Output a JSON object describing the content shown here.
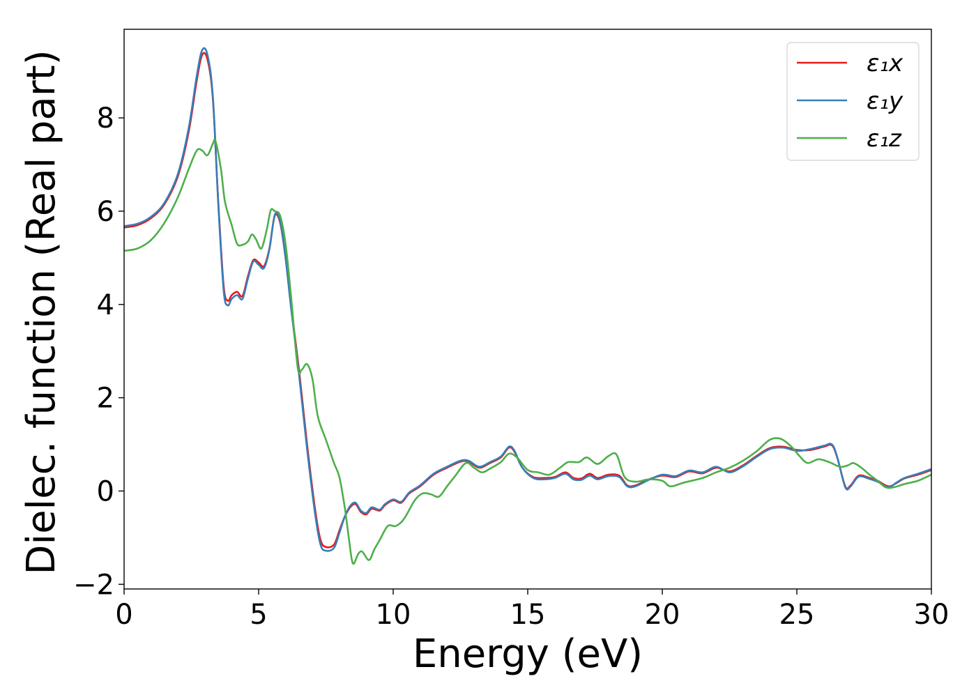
{
  "chart_data": {
    "type": "line",
    "xlabel": "Energy (eV)",
    "ylabel": "Dielec. function (Real part)",
    "xlim": [
      0,
      30
    ],
    "ylim": [
      -2.1,
      9.9
    ],
    "xticks": [
      0,
      5,
      10,
      15,
      20,
      25,
      30
    ],
    "xtick_labels": [
      "0",
      "5",
      "10",
      "15",
      "20",
      "25",
      "30"
    ],
    "yticks": [
      -2,
      0,
      2,
      4,
      6,
      8
    ],
    "ytick_labels": [
      "−2",
      "0",
      "2",
      "4",
      "6",
      "8"
    ],
    "grid": false,
    "legend_position": "top-right",
    "series": [
      {
        "name": "ε₁x",
        "color": "#e41a1c",
        "points": [
          [
            0,
            5.65
          ],
          [
            0.5,
            5.7
          ],
          [
            1,
            5.85
          ],
          [
            1.5,
            6.15
          ],
          [
            2,
            6.75
          ],
          [
            2.4,
            7.7
          ],
          [
            2.7,
            8.8
          ],
          [
            2.9,
            9.35
          ],
          [
            3.1,
            9.25
          ],
          [
            3.3,
            8.4
          ],
          [
            3.5,
            6.2
          ],
          [
            3.7,
            4.4
          ],
          [
            3.85,
            4.08
          ],
          [
            4.0,
            4.2
          ],
          [
            4.2,
            4.27
          ],
          [
            4.4,
            4.18
          ],
          [
            4.6,
            4.6
          ],
          [
            4.8,
            4.95
          ],
          [
            5.0,
            4.9
          ],
          [
            5.2,
            4.82
          ],
          [
            5.4,
            5.2
          ],
          [
            5.6,
            5.9
          ],
          [
            5.8,
            5.75
          ],
          [
            6.0,
            5.0
          ],
          [
            6.2,
            4.0
          ],
          [
            6.5,
            2.6
          ],
          [
            6.8,
            1.0
          ],
          [
            7.1,
            -0.4
          ],
          [
            7.3,
            -1.05
          ],
          [
            7.5,
            -1.2
          ],
          [
            7.8,
            -1.15
          ],
          [
            8.0,
            -0.85
          ],
          [
            8.2,
            -0.55
          ],
          [
            8.4,
            -0.35
          ],
          [
            8.6,
            -0.28
          ],
          [
            8.8,
            -0.45
          ],
          [
            9.0,
            -0.5
          ],
          [
            9.2,
            -0.38
          ],
          [
            9.5,
            -0.42
          ],
          [
            9.7,
            -0.3
          ],
          [
            10.0,
            -0.2
          ],
          [
            10.3,
            -0.25
          ],
          [
            10.6,
            -0.05
          ],
          [
            11.0,
            0.1
          ],
          [
            11.5,
            0.35
          ],
          [
            12.0,
            0.5
          ],
          [
            12.5,
            0.63
          ],
          [
            12.8,
            0.63
          ],
          [
            13.2,
            0.5
          ],
          [
            13.6,
            0.6
          ],
          [
            14.0,
            0.72
          ],
          [
            14.3,
            0.93
          ],
          [
            14.5,
            0.85
          ],
          [
            14.8,
            0.5
          ],
          [
            15.2,
            0.3
          ],
          [
            15.6,
            0.28
          ],
          [
            16.0,
            0.3
          ],
          [
            16.4,
            0.4
          ],
          [
            16.7,
            0.28
          ],
          [
            17.0,
            0.27
          ],
          [
            17.3,
            0.37
          ],
          [
            17.6,
            0.28
          ],
          [
            18.0,
            0.35
          ],
          [
            18.4,
            0.33
          ],
          [
            18.7,
            0.12
          ],
          [
            19.0,
            0.12
          ],
          [
            19.5,
            0.25
          ],
          [
            20.0,
            0.33
          ],
          [
            20.5,
            0.3
          ],
          [
            21.0,
            0.42
          ],
          [
            21.5,
            0.38
          ],
          [
            22.0,
            0.5
          ],
          [
            22.5,
            0.42
          ],
          [
            23.0,
            0.55
          ],
          [
            23.5,
            0.75
          ],
          [
            24.0,
            0.92
          ],
          [
            24.5,
            0.95
          ],
          [
            25.0,
            0.88
          ],
          [
            25.5,
            0.88
          ],
          [
            26.0,
            0.95
          ],
          [
            26.3,
            0.98
          ],
          [
            26.5,
            0.72
          ],
          [
            26.8,
            0.1
          ],
          [
            27.0,
            0.12
          ],
          [
            27.3,
            0.33
          ],
          [
            27.7,
            0.28
          ],
          [
            28.0,
            0.22
          ],
          [
            28.4,
            0.1
          ],
          [
            28.7,
            0.17
          ],
          [
            29.0,
            0.27
          ],
          [
            29.5,
            0.35
          ],
          [
            30.0,
            0.45
          ]
        ]
      },
      {
        "name": "ε₁y",
        "color": "#377eb8",
        "points": [
          [
            0,
            5.68
          ],
          [
            0.5,
            5.73
          ],
          [
            1,
            5.88
          ],
          [
            1.5,
            6.18
          ],
          [
            2,
            6.8
          ],
          [
            2.4,
            7.78
          ],
          [
            2.7,
            8.9
          ],
          [
            2.9,
            9.45
          ],
          [
            3.1,
            9.35
          ],
          [
            3.3,
            8.45
          ],
          [
            3.5,
            6.15
          ],
          [
            3.7,
            4.3
          ],
          [
            3.85,
            3.98
          ],
          [
            4.0,
            4.12
          ],
          [
            4.2,
            4.2
          ],
          [
            4.4,
            4.12
          ],
          [
            4.6,
            4.55
          ],
          [
            4.8,
            4.92
          ],
          [
            5.0,
            4.85
          ],
          [
            5.2,
            4.78
          ],
          [
            5.4,
            5.18
          ],
          [
            5.6,
            5.92
          ],
          [
            5.8,
            5.78
          ],
          [
            6.0,
            5.0
          ],
          [
            6.2,
            3.95
          ],
          [
            6.5,
            2.5
          ],
          [
            6.8,
            0.9
          ],
          [
            7.1,
            -0.5
          ],
          [
            7.3,
            -1.15
          ],
          [
            7.5,
            -1.28
          ],
          [
            7.8,
            -1.22
          ],
          [
            8.0,
            -0.9
          ],
          [
            8.2,
            -0.55
          ],
          [
            8.4,
            -0.32
          ],
          [
            8.6,
            -0.25
          ],
          [
            8.8,
            -0.42
          ],
          [
            9.0,
            -0.47
          ],
          [
            9.2,
            -0.35
          ],
          [
            9.5,
            -0.4
          ],
          [
            9.7,
            -0.28
          ],
          [
            10.0,
            -0.18
          ],
          [
            10.3,
            -0.23
          ],
          [
            10.6,
            -0.03
          ],
          [
            11.0,
            0.12
          ],
          [
            11.5,
            0.37
          ],
          [
            12.0,
            0.52
          ],
          [
            12.5,
            0.65
          ],
          [
            12.8,
            0.65
          ],
          [
            13.2,
            0.52
          ],
          [
            13.6,
            0.62
          ],
          [
            14.0,
            0.74
          ],
          [
            14.3,
            0.95
          ],
          [
            14.5,
            0.87
          ],
          [
            14.8,
            0.5
          ],
          [
            15.2,
            0.28
          ],
          [
            15.6,
            0.25
          ],
          [
            16.0,
            0.28
          ],
          [
            16.4,
            0.37
          ],
          [
            16.7,
            0.25
          ],
          [
            17.0,
            0.24
          ],
          [
            17.3,
            0.33
          ],
          [
            17.6,
            0.25
          ],
          [
            18.0,
            0.32
          ],
          [
            18.4,
            0.3
          ],
          [
            18.7,
            0.1
          ],
          [
            19.0,
            0.1
          ],
          [
            19.5,
            0.24
          ],
          [
            20.0,
            0.35
          ],
          [
            20.5,
            0.32
          ],
          [
            21.0,
            0.44
          ],
          [
            21.5,
            0.4
          ],
          [
            22.0,
            0.52
          ],
          [
            22.5,
            0.4
          ],
          [
            23.0,
            0.53
          ],
          [
            23.5,
            0.73
          ],
          [
            24.0,
            0.9
          ],
          [
            24.5,
            0.93
          ],
          [
            25.0,
            0.86
          ],
          [
            25.5,
            0.9
          ],
          [
            26.0,
            0.97
          ],
          [
            26.3,
            1.0
          ],
          [
            26.5,
            0.73
          ],
          [
            26.8,
            0.08
          ],
          [
            27.0,
            0.1
          ],
          [
            27.3,
            0.31
          ],
          [
            27.7,
            0.26
          ],
          [
            28.0,
            0.2
          ],
          [
            28.4,
            0.08
          ],
          [
            28.7,
            0.18
          ],
          [
            29.0,
            0.28
          ],
          [
            29.5,
            0.37
          ],
          [
            30.0,
            0.47
          ]
        ]
      },
      {
        "name": "ε₁z",
        "color": "#4daf4a",
        "points": [
          [
            0,
            5.15
          ],
          [
            0.5,
            5.2
          ],
          [
            1,
            5.38
          ],
          [
            1.5,
            5.75
          ],
          [
            2,
            6.3
          ],
          [
            2.4,
            6.9
          ],
          [
            2.7,
            7.3
          ],
          [
            2.9,
            7.3
          ],
          [
            3.1,
            7.2
          ],
          [
            3.3,
            7.45
          ],
          [
            3.4,
            7.5
          ],
          [
            3.6,
            6.9
          ],
          [
            3.75,
            6.2
          ],
          [
            4.0,
            5.7
          ],
          [
            4.2,
            5.3
          ],
          [
            4.4,
            5.28
          ],
          [
            4.6,
            5.35
          ],
          [
            4.75,
            5.5
          ],
          [
            4.9,
            5.4
          ],
          [
            5.1,
            5.2
          ],
          [
            5.3,
            5.6
          ],
          [
            5.45,
            6.02
          ],
          [
            5.6,
            6.0
          ],
          [
            5.8,
            5.9
          ],
          [
            6.0,
            5.3
          ],
          [
            6.2,
            4.2
          ],
          [
            6.45,
            2.65
          ],
          [
            6.6,
            2.6
          ],
          [
            6.8,
            2.72
          ],
          [
            7.0,
            2.4
          ],
          [
            7.2,
            1.6
          ],
          [
            7.5,
            1.1
          ],
          [
            7.8,
            0.6
          ],
          [
            8.0,
            0.3
          ],
          [
            8.2,
            -0.35
          ],
          [
            8.35,
            -1.0
          ],
          [
            8.5,
            -1.55
          ],
          [
            8.7,
            -1.35
          ],
          [
            8.85,
            -1.3
          ],
          [
            9.1,
            -1.48
          ],
          [
            9.3,
            -1.25
          ],
          [
            9.5,
            -1.05
          ],
          [
            9.8,
            -0.75
          ],
          [
            10.1,
            -0.75
          ],
          [
            10.4,
            -0.6
          ],
          [
            10.8,
            -0.2
          ],
          [
            11.1,
            -0.05
          ],
          [
            11.4,
            -0.07
          ],
          [
            11.7,
            -0.12
          ],
          [
            12.0,
            0.1
          ],
          [
            12.3,
            0.32
          ],
          [
            12.7,
            0.6
          ],
          [
            13.0,
            0.5
          ],
          [
            13.3,
            0.4
          ],
          [
            13.6,
            0.48
          ],
          [
            14.0,
            0.62
          ],
          [
            14.3,
            0.8
          ],
          [
            14.6,
            0.72
          ],
          [
            15.0,
            0.45
          ],
          [
            15.4,
            0.4
          ],
          [
            15.8,
            0.35
          ],
          [
            16.2,
            0.5
          ],
          [
            16.5,
            0.62
          ],
          [
            16.9,
            0.62
          ],
          [
            17.2,
            0.72
          ],
          [
            17.6,
            0.58
          ],
          [
            18.0,
            0.75
          ],
          [
            18.3,
            0.78
          ],
          [
            18.6,
            0.3
          ],
          [
            19.0,
            0.2
          ],
          [
            19.5,
            0.25
          ],
          [
            20.0,
            0.22
          ],
          [
            20.3,
            0.1
          ],
          [
            20.8,
            0.18
          ],
          [
            21.5,
            0.28
          ],
          [
            22.0,
            0.4
          ],
          [
            22.5,
            0.5
          ],
          [
            23.0,
            0.65
          ],
          [
            23.5,
            0.85
          ],
          [
            24.0,
            1.1
          ],
          [
            24.4,
            1.12
          ],
          [
            24.8,
            0.95
          ],
          [
            25.1,
            0.75
          ],
          [
            25.4,
            0.6
          ],
          [
            25.8,
            0.68
          ],
          [
            26.2,
            0.62
          ],
          [
            26.6,
            0.52
          ],
          [
            26.9,
            0.55
          ],
          [
            27.1,
            0.6
          ],
          [
            27.4,
            0.5
          ],
          [
            27.7,
            0.35
          ],
          [
            28.0,
            0.22
          ],
          [
            28.3,
            0.08
          ],
          [
            28.6,
            0.08
          ],
          [
            29.0,
            0.15
          ],
          [
            29.5,
            0.22
          ],
          [
            30.0,
            0.35
          ]
        ]
      }
    ]
  }
}
